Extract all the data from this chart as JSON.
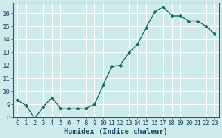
{
  "xlabel": "Humidex (Indice chaleur)",
  "ylabel": "",
  "x": [
    0,
    1,
    2,
    3,
    4,
    5,
    6,
    7,
    8,
    9,
    10,
    11,
    12,
    13,
    14,
    15,
    16,
    17,
    18,
    19,
    20,
    21,
    22,
    23
  ],
  "y": [
    9.3,
    8.9,
    7.9,
    8.8,
    9.5,
    8.7,
    8.7,
    8.7,
    8.7,
    9.0,
    10.5,
    11.9,
    12.0,
    13.0,
    13.6,
    14.9,
    16.1,
    16.5,
    15.8,
    15.8,
    15.4,
    15.4,
    15.0,
    14.4
  ],
  "line_color": "#1a6b5a",
  "marker": "D",
  "marker_size": 2.5,
  "bg_color": "#ceeaea",
  "grid_color": "#ffffff",
  "ylim": [
    8,
    16.8
  ],
  "yticks": [
    8,
    9,
    10,
    11,
    12,
    13,
    14,
    15,
    16
  ],
  "xlim": [
    -0.5,
    23.5
  ],
  "xticks": [
    0,
    1,
    2,
    3,
    4,
    5,
    6,
    7,
    8,
    9,
    10,
    11,
    12,
    13,
    14,
    15,
    16,
    17,
    18,
    19,
    20,
    21,
    22,
    23
  ],
  "tick_fontsize": 6.5,
  "xlabel_fontsize": 7.5,
  "xlabel_color": "#1a4a6a",
  "tick_color": "#1a4a6a"
}
